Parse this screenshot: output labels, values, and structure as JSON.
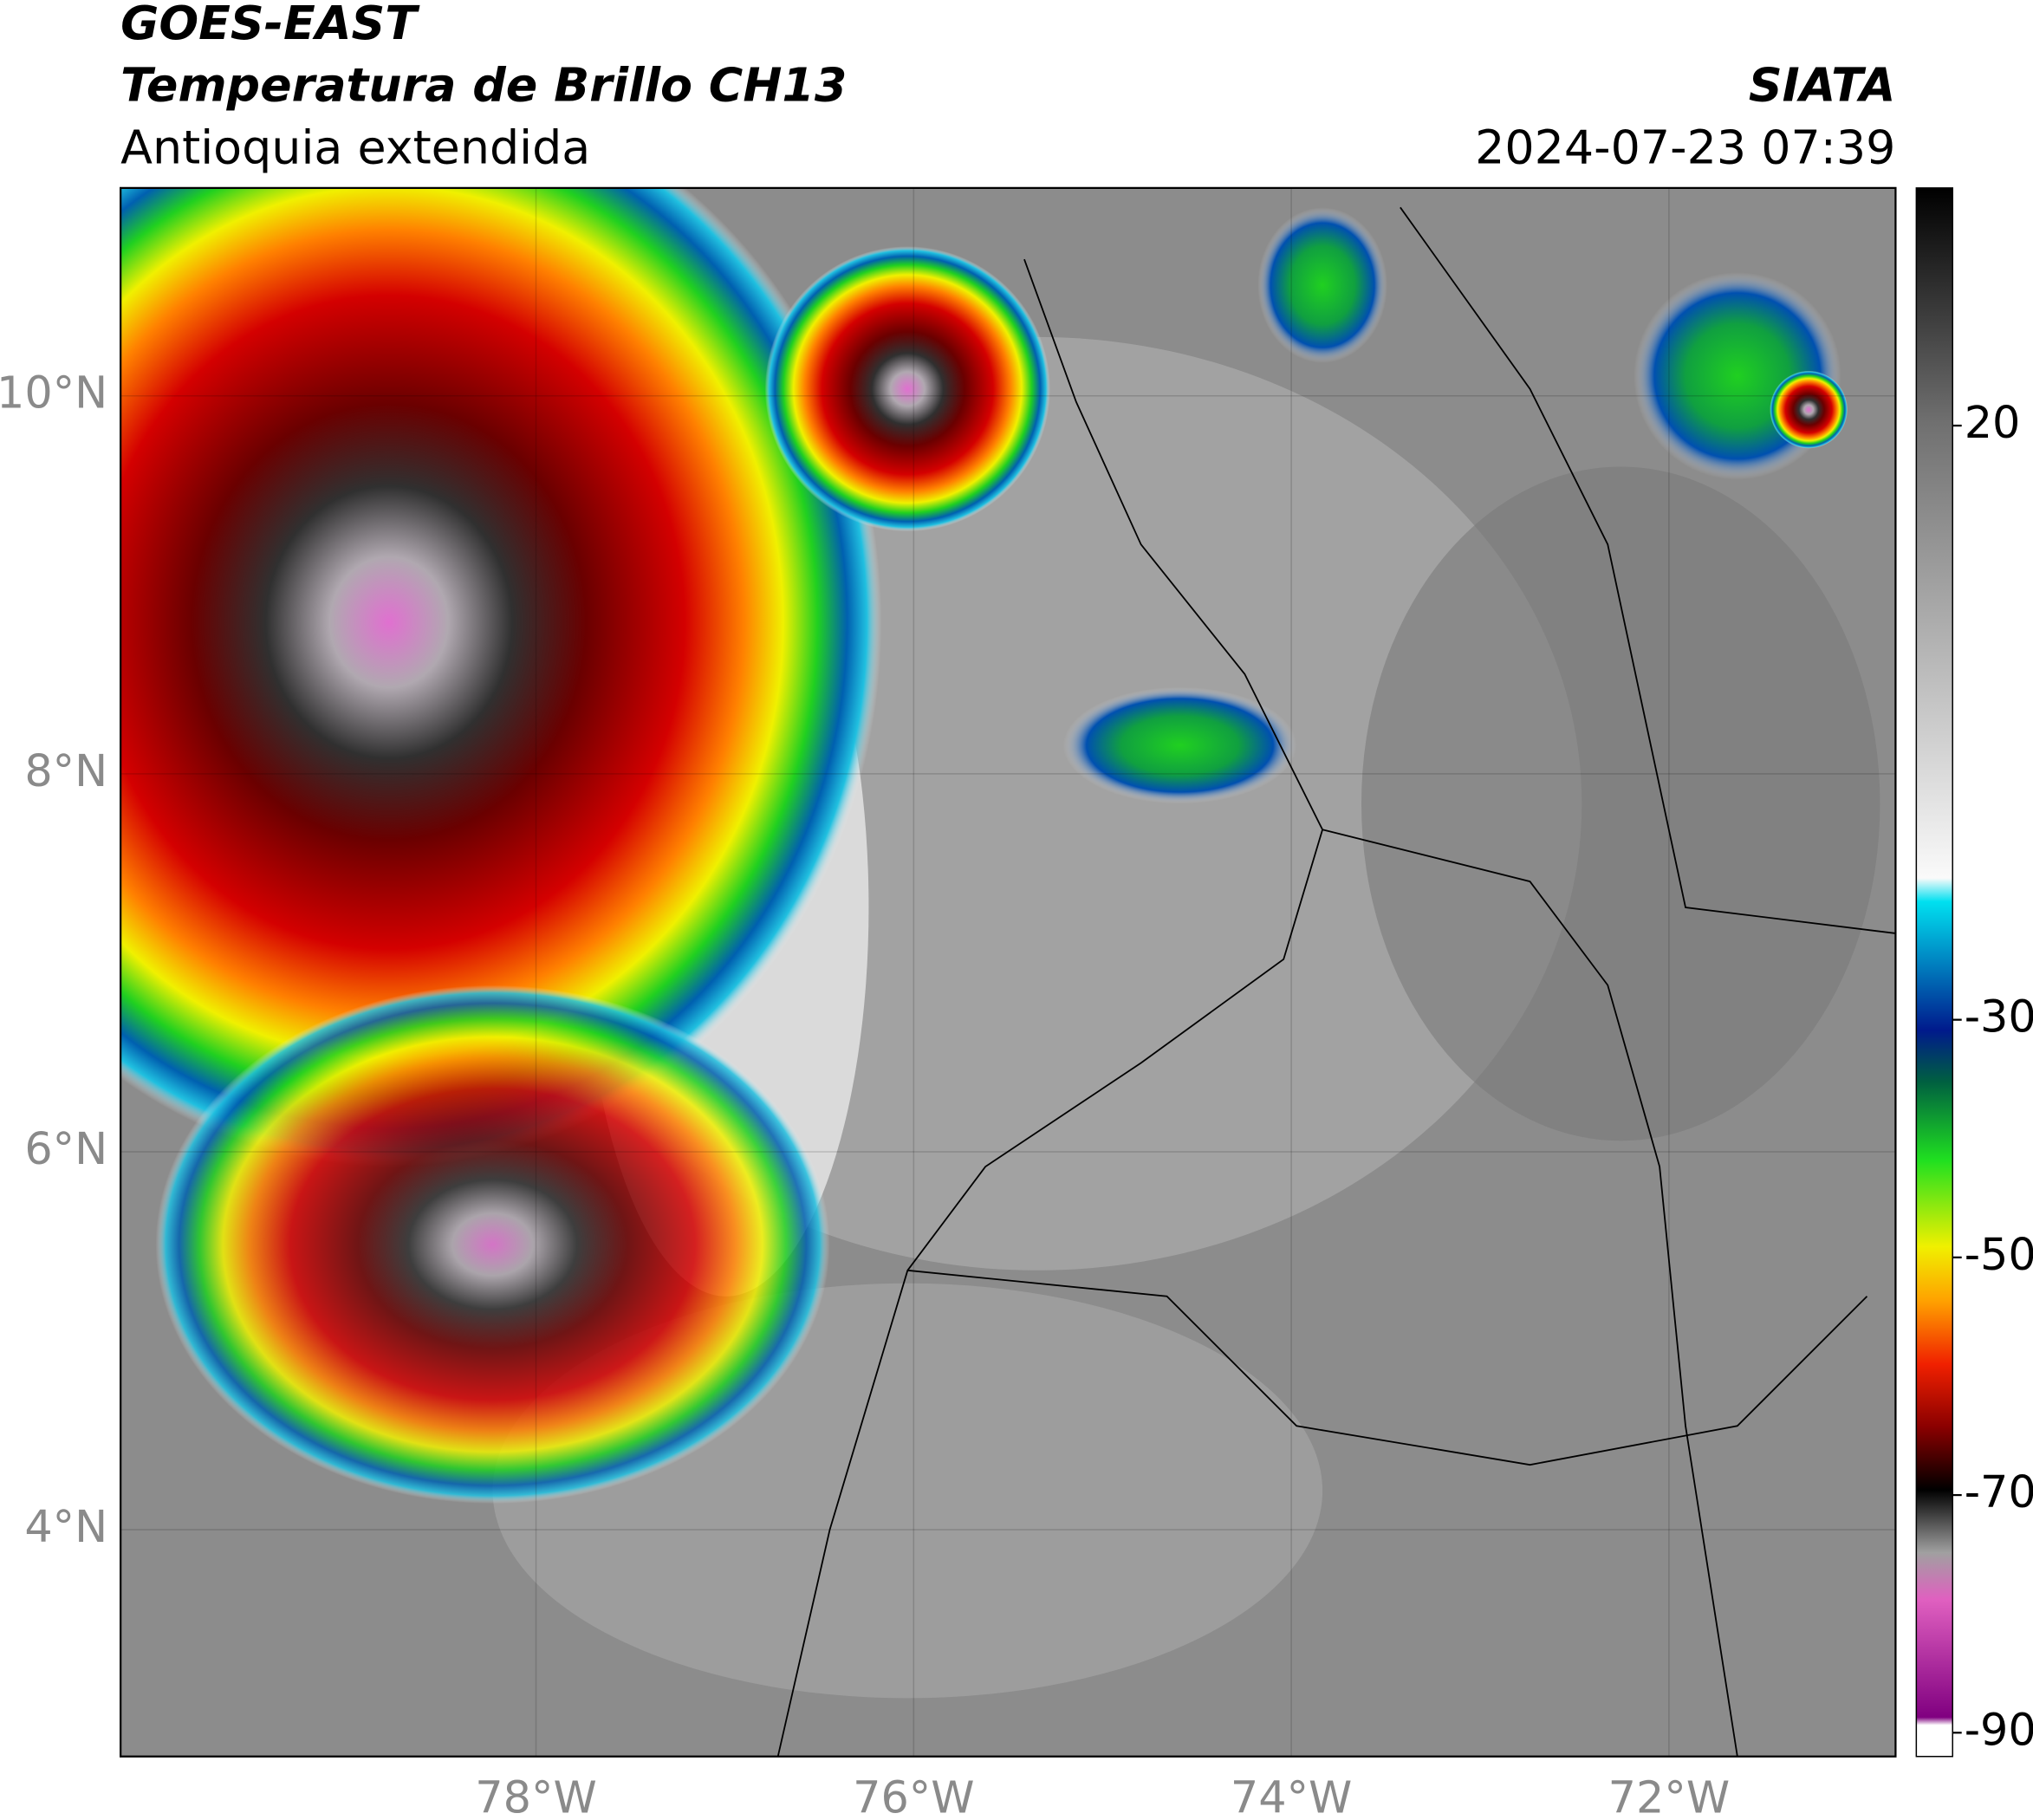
{
  "header": {
    "title": "GOES-EAST",
    "subtitle": "Temperatura de Brillo CH13",
    "region": "Antioquia extendida",
    "source": "SIATA",
    "datetime": "2024-07-23 07:39"
  },
  "map": {
    "xlim": [
      -80.2,
      -70.8
    ],
    "ylim": [
      2.8,
      11.1
    ],
    "xticks": [
      {
        "value": -78,
        "label": "78°W"
      },
      {
        "value": -76,
        "label": "76°W"
      },
      {
        "value": -74,
        "label": "74°W"
      },
      {
        "value": -72,
        "label": "72°W"
      }
    ],
    "yticks": [
      {
        "value": 4,
        "label": "4°N"
      },
      {
        "value": 6,
        "label": "6°N"
      },
      {
        "value": 8,
        "label": "8°N"
      },
      {
        "value": 10,
        "label": "10°N"
      }
    ],
    "grid": true
  },
  "colorbar": {
    "lim": [
      -92,
      40
    ],
    "ticks": [
      20,
      -30,
      -50,
      -70,
      -90
    ]
  }
}
